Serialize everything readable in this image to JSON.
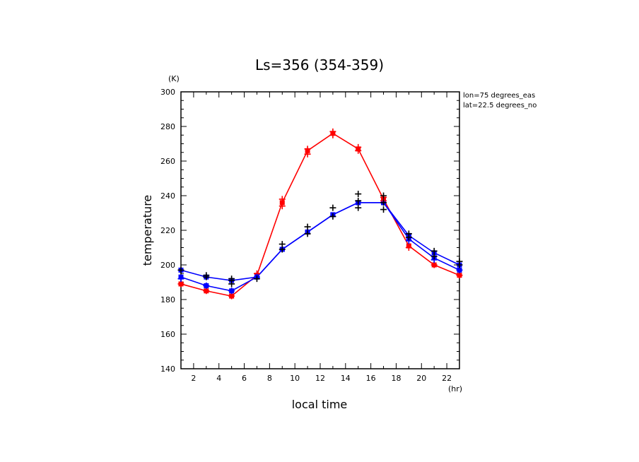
{
  "chart_data": {
    "type": "line",
    "title": "Ls=356 (354-359)",
    "xlabel": "local time",
    "ylabel": "temperature",
    "x_unit": "(hr)",
    "y_unit": "(K)",
    "annotations": [
      "lon=75 degrees_eas",
      "lat=22.5 degrees_no"
    ],
    "xlim": [
      1,
      23
    ],
    "ylim": [
      140,
      300
    ],
    "x_ticks": [
      2,
      4,
      6,
      8,
      10,
      12,
      14,
      16,
      18,
      20,
      22
    ],
    "y_ticks": [
      140,
      160,
      180,
      200,
      220,
      240,
      260,
      280,
      300
    ],
    "x": [
      1,
      3,
      5,
      7,
      9,
      11,
      13,
      15,
      17,
      19,
      21,
      23
    ],
    "series": [
      {
        "color": "#ff0000",
        "values": [
          189,
          185,
          182,
          194,
          236,
          266,
          276,
          267,
          238,
          211,
          200,
          194
        ]
      },
      {
        "color": "#0000ff",
        "values": [
          193,
          188,
          185,
          193,
          209,
          219,
          229,
          236,
          236,
          215,
          204,
          197
        ]
      },
      {
        "color": "#0000ff",
        "values": [
          197,
          193,
          191,
          193,
          209,
          219,
          229,
          236,
          236,
          217,
          207,
          200
        ]
      }
    ],
    "markers": [
      {
        "color": "#ff0000",
        "points": [
          [
            1,
            189
          ],
          [
            3,
            185
          ],
          [
            5,
            182
          ],
          [
            7,
            195
          ],
          [
            9,
            234
          ],
          [
            9,
            238
          ],
          [
            11,
            264
          ],
          [
            11,
            267
          ],
          [
            13,
            275
          ],
          [
            13,
            277
          ],
          [
            15,
            266
          ],
          [
            15,
            268
          ],
          [
            17,
            237
          ],
          [
            17,
            239
          ],
          [
            19,
            210
          ],
          [
            21,
            200
          ],
          [
            23,
            194
          ]
        ]
      },
      {
        "color": "#0000ff",
        "points": [
          [
            1,
            192
          ],
          [
            3,
            188
          ],
          [
            5,
            185
          ],
          [
            7,
            193
          ],
          [
            19,
            214
          ],
          [
            21,
            203
          ],
          [
            23,
            197
          ]
        ]
      },
      {
        "color": "#000000",
        "points": [
          [
            1,
            197
          ],
          [
            3,
            193
          ],
          [
            3,
            194
          ],
          [
            5,
            191
          ],
          [
            5,
            189
          ],
          [
            5,
            192
          ],
          [
            7,
            192
          ],
          [
            9,
            209
          ],
          [
            9,
            212
          ],
          [
            11,
            218
          ],
          [
            11,
            222
          ],
          [
            13,
            228
          ],
          [
            13,
            233
          ],
          [
            15,
            233
          ],
          [
            15,
            237
          ],
          [
            15,
            241
          ],
          [
            17,
            232
          ],
          [
            17,
            236
          ],
          [
            17,
            240
          ],
          [
            19,
            216
          ],
          [
            19,
            218
          ],
          [
            21,
            205
          ],
          [
            21,
            208
          ],
          [
            23,
            200
          ],
          [
            23,
            202
          ]
        ]
      }
    ]
  }
}
